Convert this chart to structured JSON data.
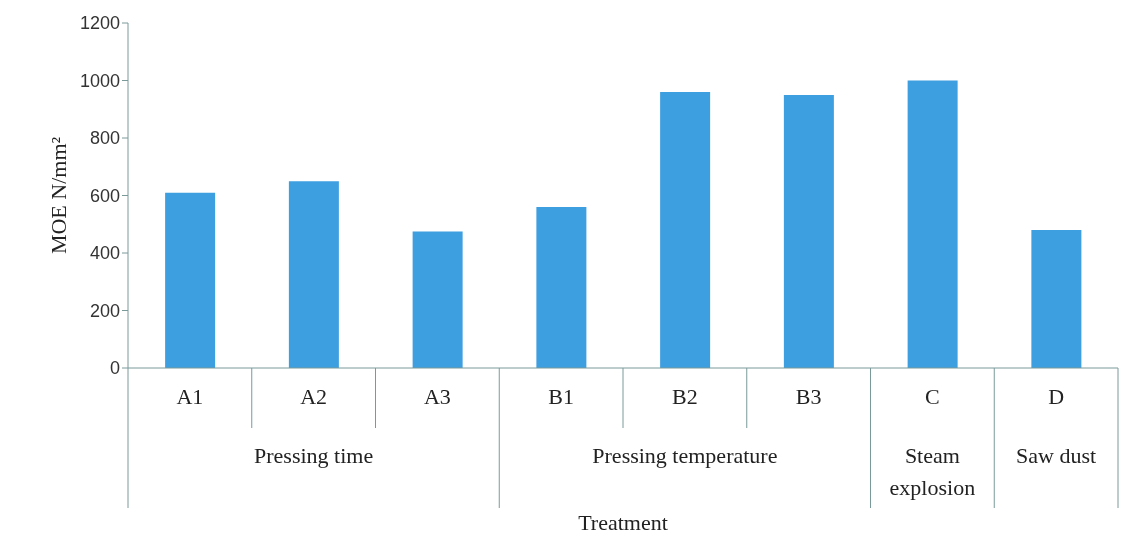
{
  "chart_data": {
    "type": "bar",
    "xlabel": "Treatment",
    "ylabel": "MOE  N/mm²",
    "categories": [
      "A1",
      "A2",
      "A3",
      "B1",
      "B2",
      "B3",
      "C",
      "D"
    ],
    "values": [
      610,
      650,
      475,
      560,
      960,
      950,
      1000,
      480
    ],
    "color": "#3d9ee0",
    "ylim": [
      0,
      1200
    ],
    "yticks": [
      0,
      200,
      400,
      600,
      800,
      1000,
      1200
    ],
    "grid": false,
    "legend": false,
    "annotations": [
      "Pressing time",
      "Pressing temperature",
      "Steam explosion",
      "Saw dust"
    ]
  }
}
